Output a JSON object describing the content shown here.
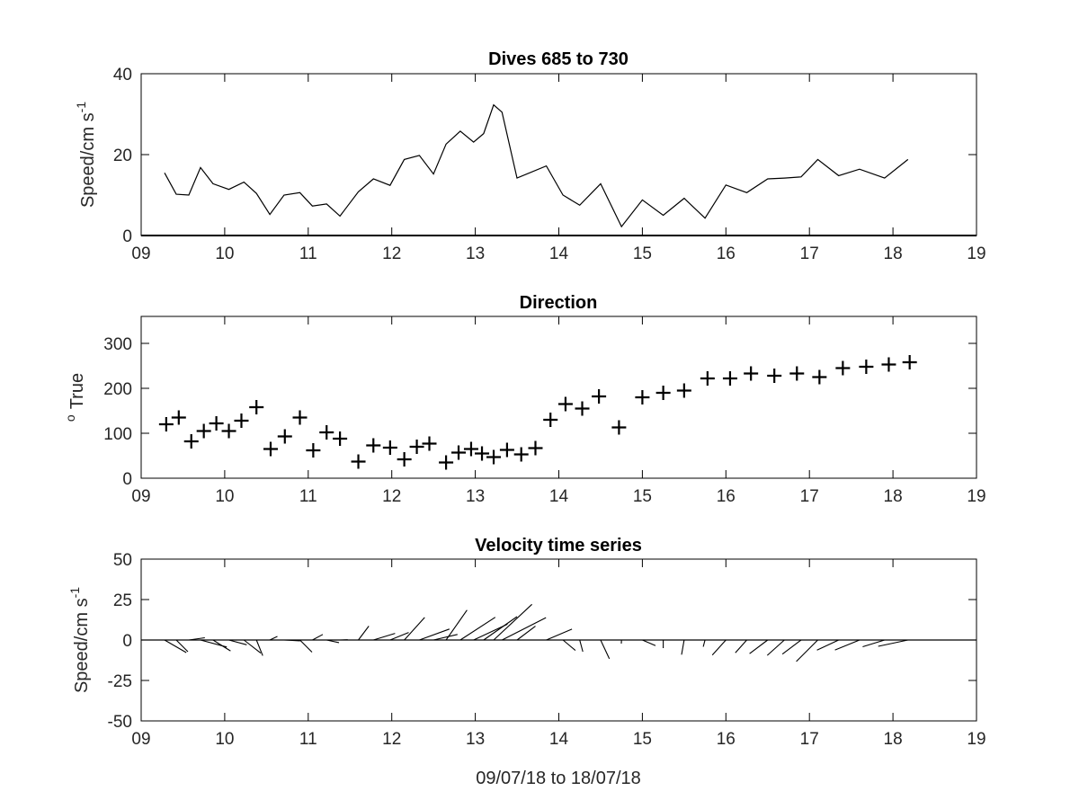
{
  "colors": {
    "background": "#ffffff",
    "axes": "#000000",
    "line": "#000000"
  },
  "chart_data": [
    {
      "type": "line",
      "title": "Dives 685 to 730",
      "ylabel": "Speed/cm s",
      "ylabel_sup": "-1",
      "xlabel": "",
      "xlim": [
        9,
        19
      ],
      "ylim": [
        0,
        40
      ],
      "xticks": [
        9,
        10,
        11,
        12,
        13,
        14,
        15,
        16,
        17,
        18,
        19
      ],
      "xtick_labels": [
        "09",
        "10",
        "11",
        "12",
        "13",
        "14",
        "15",
        "16",
        "17",
        "18",
        "19"
      ],
      "yticks": [
        0,
        20,
        40
      ],
      "ytick_labels": [
        "0",
        "20",
        "40"
      ],
      "grid": false,
      "series": [
        {
          "x": [
            9.28,
            9.42,
            9.57,
            9.71,
            9.86,
            10.05,
            10.23,
            10.38,
            10.54,
            10.71,
            10.9,
            11.05,
            11.22,
            11.38,
            11.6,
            11.78,
            11.98,
            12.15,
            12.33,
            12.5,
            12.65,
            12.82,
            12.98,
            13.1,
            13.22,
            13.32,
            13.5,
            13.85,
            14.05,
            14.25,
            14.5,
            14.75,
            15.0,
            15.25,
            15.5,
            15.75,
            16.0,
            16.25,
            16.5,
            16.7,
            16.9,
            17.1,
            17.35,
            17.6,
            17.9,
            18.18
          ],
          "y": [
            15.5,
            10.2,
            10.0,
            16.8,
            12.8,
            11.4,
            13.2,
            10.4,
            5.2,
            10.0,
            10.6,
            7.3,
            7.8,
            4.8,
            10.8,
            14.0,
            12.4,
            18.8,
            19.8,
            15.2,
            22.6,
            25.8,
            23.1,
            25.2,
            32.3,
            30.5,
            14.2,
            17.2,
            10.0,
            7.5,
            12.8,
            2.2,
            8.8,
            5.0,
            9.2,
            4.3,
            12.5,
            10.6,
            14.0,
            14.2,
            14.5,
            18.8,
            14.8,
            16.4,
            14.2,
            18.8
          ]
        }
      ]
    },
    {
      "type": "scatter",
      "title": "Direction",
      "ylabel": "True",
      "ylabel_sup": "o",
      "xlabel": "",
      "xlim": [
        9,
        19
      ],
      "ylim": [
        0,
        360
      ],
      "xticks": [
        9,
        10,
        11,
        12,
        13,
        14,
        15,
        16,
        17,
        18,
        19
      ],
      "xtick_labels": [
        "09",
        "10",
        "11",
        "12",
        "13",
        "14",
        "15",
        "16",
        "17",
        "18",
        "19"
      ],
      "yticks": [
        0,
        100,
        200,
        300
      ],
      "ytick_labels": [
        "0",
        "100",
        "200",
        "300"
      ],
      "grid": false,
      "marker": "+",
      "series": [
        {
          "x": [
            9.3,
            9.45,
            9.6,
            9.75,
            9.9,
            10.05,
            10.2,
            10.38,
            10.55,
            10.72,
            10.9,
            11.06,
            11.22,
            11.38,
            11.6,
            11.78,
            11.98,
            12.15,
            12.3,
            12.45,
            12.65,
            12.8,
            12.95,
            13.08,
            13.22,
            13.38,
            13.55,
            13.72,
            13.9,
            14.08,
            14.28,
            14.48,
            14.72,
            15.0,
            15.25,
            15.5,
            15.78,
            16.05,
            16.3,
            16.58,
            16.85,
            17.12,
            17.4,
            17.68,
            17.95,
            18.2
          ],
          "y": [
            120,
            135,
            82,
            105,
            122,
            105,
            128,
            158,
            65,
            93,
            135,
            62,
            102,
            88,
            37,
            73,
            68,
            42,
            70,
            77,
            35,
            57,
            65,
            55,
            47,
            63,
            53,
            67,
            130,
            165,
            155,
            182,
            113,
            180,
            190,
            195,
            222,
            222,
            233,
            228,
            233,
            225,
            245,
            248,
            253,
            258
          ]
        }
      ]
    },
    {
      "type": "line",
      "subtype": "stick-plot",
      "title": "Velocity time series",
      "ylabel": "Speed/cm s",
      "ylabel_sup": "-1",
      "xlabel": "09/07/18 to 18/07/18",
      "xlim": [
        9,
        19
      ],
      "ylim": [
        -50,
        50
      ],
      "xticks": [
        9,
        10,
        11,
        12,
        13,
        14,
        15,
        16,
        17,
        18,
        19
      ],
      "xtick_labels": [
        "09",
        "10",
        "11",
        "12",
        "13",
        "14",
        "15",
        "16",
        "17",
        "18",
        "19"
      ],
      "yticks": [
        -50,
        -25,
        0,
        25,
        50
      ],
      "ytick_labels": [
        "-50",
        "-25",
        "0",
        "25",
        "50"
      ],
      "grid": false,
      "baseline": 0,
      "series": [
        {
          "x": [
            9.28,
            9.42,
            9.57,
            9.71,
            9.86,
            10.05,
            10.23,
            10.38,
            10.54,
            10.71,
            10.9,
            11.05,
            11.22,
            11.38,
            11.6,
            11.78,
            11.98,
            12.15,
            12.33,
            12.5,
            12.65,
            12.82,
            12.98,
            13.1,
            13.22,
            13.32,
            13.5,
            13.85,
            14.05,
            14.25,
            14.5,
            14.75,
            15.0,
            15.25,
            15.5,
            15.75,
            16.0,
            16.25,
            16.5,
            16.7,
            16.9,
            17.1,
            17.35,
            17.6,
            17.9,
            18.18
          ],
          "speed": [
            15.5,
            10.2,
            10.0,
            16.8,
            12.8,
            11.4,
            13.2,
            10.4,
            5.2,
            10.0,
            10.6,
            7.3,
            7.8,
            4.8,
            10.8,
            14.0,
            12.4,
            18.8,
            19.8,
            15.2,
            22.6,
            25.8,
            23.1,
            25.2,
            32.3,
            30.5,
            14.2,
            17.2,
            10.0,
            7.5,
            12.8,
            2.2,
            8.8,
            5.0,
            9.2,
            4.3,
            12.5,
            10.6,
            14.0,
            14.2,
            14.5,
            18.8,
            14.8,
            16.4,
            14.2,
            18.8
          ],
          "direction": [
            120,
            135,
            82,
            105,
            122,
            105,
            128,
            158,
            65,
            93,
            135,
            62,
            102,
            88,
            37,
            73,
            68,
            42,
            70,
            77,
            35,
            57,
            65,
            55,
            47,
            63,
            53,
            67,
            130,
            165,
            155,
            182,
            113,
            180,
            190,
            195,
            222,
            222,
            233,
            228,
            233,
            225,
            245,
            248,
            253,
            258
          ]
        }
      ]
    }
  ]
}
